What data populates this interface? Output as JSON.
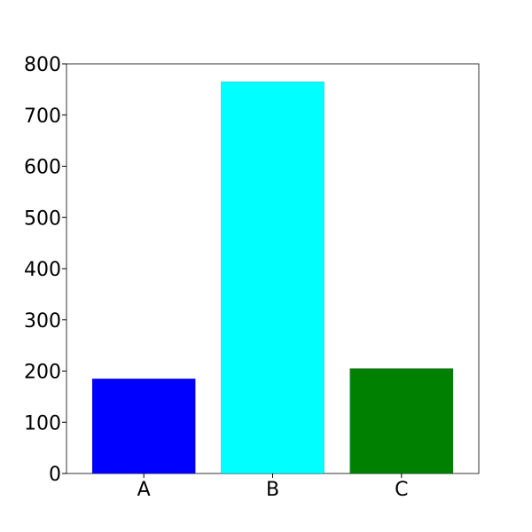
{
  "chart_data": {
    "type": "bar",
    "categories": [
      "A",
      "B",
      "C"
    ],
    "values": [
      185,
      765,
      205
    ],
    "colors": [
      "#0000ff",
      "#00ffff",
      "#008000"
    ],
    "ylim": [
      0,
      800
    ],
    "yticks": [
      0,
      100,
      200,
      300,
      400,
      500,
      600,
      700,
      800
    ],
    "title": "",
    "xlabel": "",
    "ylabel": "",
    "grid": false,
    "legend": false
  }
}
